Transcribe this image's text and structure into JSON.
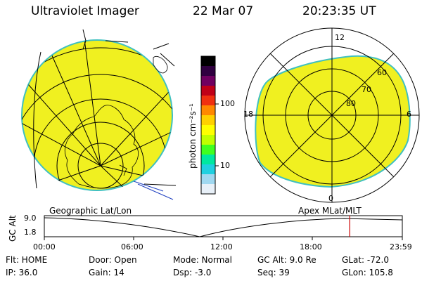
{
  "header": {
    "instrument": "Ultraviolet Imager",
    "date": "22 Mar 07",
    "time": "20:23:35 UT"
  },
  "colorbar": {
    "unit_label": "photon cm⁻²s⁻¹",
    "tick_labels": [
      "100",
      "10"
    ],
    "colors": [
      "#000000",
      "#300040",
      "#700060",
      "#c00018",
      "#f03010",
      "#ff8800",
      "#ffd000",
      "#ffff00",
      "#c0ff00",
      "#40ff20",
      "#00e8a0",
      "#20d0e0",
      "#a0d8f0",
      "#e8f0f8"
    ]
  },
  "polar_plot": {
    "mlt_labels": [
      "12",
      "18",
      "6",
      "0"
    ],
    "lat_labels": [
      "60",
      "70",
      "80"
    ]
  },
  "projection_labels": {
    "left": "Geographic Lat/Lon",
    "right": "Apex MLat/MLT"
  },
  "altitude_plot": {
    "axis_title": "GC Alt",
    "y_ticks": [
      "9.0",
      "1.8"
    ],
    "x_ticks": [
      "00:00",
      "06:00",
      "12:00",
      "18:00",
      "23:59"
    ],
    "current_time_fraction": 0.853,
    "marker_color": "#cc0000"
  },
  "status": {
    "filter": "Flt: HOME",
    "door": "Door: Open",
    "mode": "Mode: Normal",
    "gc_alt": "GC Alt: 9.0 Re",
    "glat": "GLat: -72.0",
    "ip": "IP: 36.0",
    "gain": "Gain: 14",
    "dsp": "Dsp:    -3.0",
    "seq": "Seq: 39",
    "glon": "GLon: 105.8"
  },
  "colors": {
    "aurora_fill": "#f0f020",
    "edge": "#40c0c0"
  }
}
